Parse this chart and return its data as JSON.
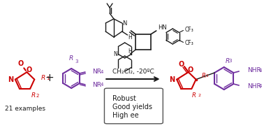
{
  "bg_color": "#ffffff",
  "figsize": [
    3.78,
    1.83
  ],
  "dpi": 100,
  "red_color": "#cc0000",
  "purple_color": "#7030a0",
  "black_color": "#1a1a1a",
  "box_color": "#555555",
  "reaction_conditions": "CH₂Cl₂, -20ºC",
  "bullet1": "Robust",
  "bullet2": "Good yields",
  "bullet3": "High ee",
  "examples_text": "21 examples"
}
